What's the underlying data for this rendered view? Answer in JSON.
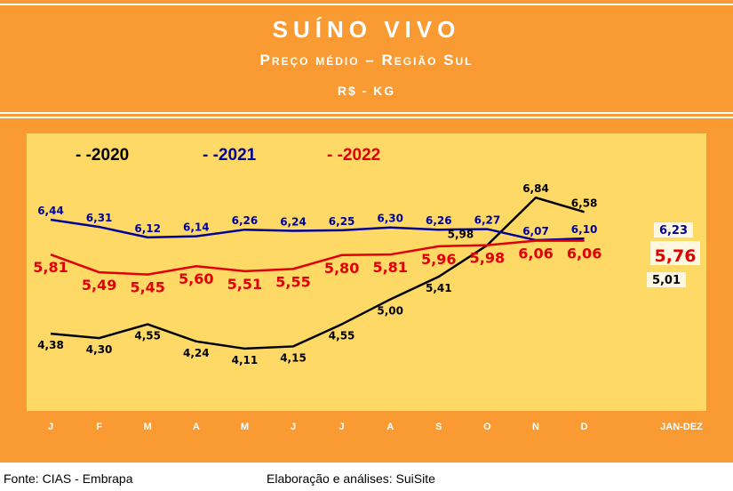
{
  "header": {
    "title": "SUÍNO VIVO",
    "subtitle": "Preço médio – Região Sul",
    "unit": "R$ - KG"
  },
  "footer": {
    "source": "Fonte: CIAS - Embrapa",
    "credit": "Elaboração e análises: SuiSite"
  },
  "chart_data": {
    "type": "line",
    "title": "SUÍNO VIVO",
    "categories": [
      "J",
      "F",
      "M",
      "A",
      "M",
      "J",
      "J",
      "A",
      "S",
      "O",
      "N",
      "D"
    ],
    "summary_label": "JAN-DEZ",
    "series": [
      {
        "name": "2020",
        "color": "#000000",
        "values": [
          4.38,
          4.3,
          4.55,
          4.24,
          4.11,
          4.15,
          4.55,
          5.0,
          5.41,
          5.98,
          6.84,
          6.58
        ],
        "labels": [
          "4,38",
          "4,30",
          "4,55",
          "4,24",
          "4,11",
          "4,15",
          "4,55",
          "5,00",
          "5,41",
          "5,98",
          "6,84",
          "6,58"
        ],
        "average": "5,01"
      },
      {
        "name": "2021",
        "color": "#000099",
        "values": [
          6.44,
          6.31,
          6.12,
          6.14,
          6.26,
          6.24,
          6.25,
          6.3,
          6.26,
          6.27,
          6.07,
          6.1
        ],
        "labels": [
          "6,44",
          "6,31",
          "6,12",
          "6,14",
          "6,26",
          "6,24",
          "6,25",
          "6,30",
          "6,26",
          "6,27",
          "6,07",
          "6,10"
        ],
        "average": "6,23"
      },
      {
        "name": "2022",
        "color": "#E00000",
        "values": [
          5.81,
          5.49,
          5.45,
          5.6,
          5.51,
          5.55,
          5.8,
          5.81,
          5.96,
          5.98,
          6.06,
          6.06
        ],
        "labels": [
          "5,81",
          "5,49",
          "5,45",
          "5,60",
          "5,51",
          "5,55",
          "5,80",
          "5,81",
          "5,96",
          "5,98",
          "6,06",
          "6,06"
        ],
        "average": "5,76"
      }
    ],
    "legend": [
      "- -2020",
      "- -2021",
      "- -2022"
    ],
    "legend_position": "top-left"
  }
}
